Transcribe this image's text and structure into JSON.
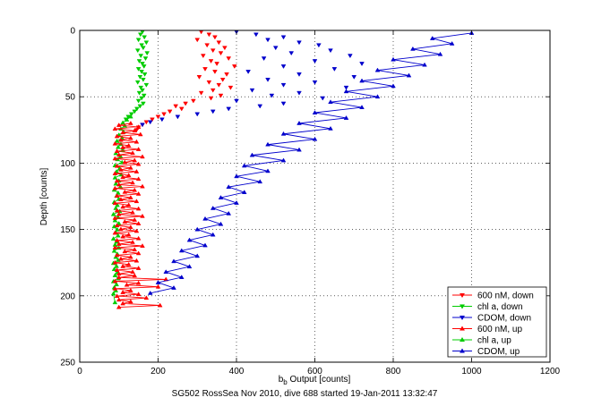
{
  "chart_data": {
    "type": "scatter",
    "xlabel_prefix": "b",
    "xlabel_sub": "b",
    "xlabel_suffix": " Output [counts]",
    "ylabel": "Depth [counts]",
    "caption": "SG502 RossSea Nov 2010, dive 688 started 19-Jan-2011 13:32:47",
    "xlim": [
      0,
      1200
    ],
    "ylim": [
      0,
      250
    ],
    "y_reversed": true,
    "grid": true,
    "legend_position": "bottom-right",
    "x_ticks": [
      "0",
      "200",
      "400",
      "600",
      "800",
      "1000",
      "1200"
    ],
    "y_ticks": [
      "0",
      "50",
      "100",
      "150",
      "200",
      "250"
    ],
    "series": [
      {
        "name": "600 nM, down",
        "color": "#ff0000",
        "marker": "down",
        "connected": false,
        "x": [
          310,
          330,
          345,
          300,
          355,
          325,
          370,
          340,
          360,
          315,
          380,
          335,
          350,
          395,
          320,
          345,
          375,
          305,
          365,
          330,
          355,
          385,
          340,
          310,
          360,
          335,
          290,
          270,
          245,
          260,
          230,
          215,
          200,
          185,
          170,
          160,
          150,
          145
        ],
        "y": [
          1,
          3,
          5,
          7,
          9,
          11,
          13,
          15,
          17,
          19,
          21,
          23,
          25,
          27,
          29,
          31,
          33,
          35,
          37,
          39,
          41,
          43,
          45,
          47,
          49,
          51,
          53,
          55,
          57,
          59,
          61,
          63,
          65,
          67,
          69,
          71,
          73,
          75
        ]
      },
      {
        "name": "chl a, down",
        "color": "#00cc00",
        "marker": "down",
        "connected": false,
        "x": [
          160,
          155,
          165,
          150,
          170,
          158,
          162,
          148,
          172,
          156,
          168,
          152,
          160,
          164,
          150,
          158,
          166,
          154,
          162,
          148,
          170,
          156,
          160,
          152,
          164,
          158,
          150,
          162,
          154,
          146,
          140,
          132,
          124,
          118
        ],
        "y": [
          1,
          3,
          5,
          7,
          9,
          11,
          13,
          15,
          17,
          19,
          21,
          23,
          25,
          27,
          29,
          31,
          33,
          35,
          37,
          39,
          41,
          43,
          45,
          47,
          49,
          51,
          53,
          55,
          57,
          59,
          61,
          63,
          65,
          67
        ]
      },
      {
        "name": "CDOM, down",
        "color": "#0000cc",
        "marker": "down",
        "connected": false,
        "x": [
          400,
          450,
          520,
          480,
          560,
          610,
          500,
          640,
          540,
          690,
          470,
          600,
          720,
          520,
          650,
          430,
          560,
          700,
          480,
          600,
          520,
          680,
          440,
          560,
          490,
          620,
          400,
          520,
          460,
          380,
          340,
          300,
          250,
          210,
          180,
          160
        ],
        "y": [
          1,
          3,
          5,
          7,
          9,
          11,
          13,
          15,
          17,
          19,
          21,
          23,
          25,
          27,
          29,
          31,
          33,
          35,
          37,
          39,
          41,
          43,
          45,
          47,
          49,
          51,
          53,
          55,
          57,
          59,
          61,
          63,
          65,
          67,
          69,
          71
        ]
      },
      {
        "name": "600 nM, up",
        "color": "#ff0000",
        "marker": "up",
        "connected": true,
        "x": [
          130,
          100,
          150,
          90,
          140,
          110,
          155,
          95,
          130,
          105,
          145,
          90,
          125,
          110,
          150,
          95,
          135,
          100,
          160,
          90,
          140,
          115,
          150,
          95,
          130,
          105,
          145,
          90,
          125,
          110,
          150,
          95,
          135,
          100,
          160,
          90,
          140,
          115,
          150,
          95,
          130,
          105,
          145,
          90,
          125,
          110,
          150,
          95,
          135,
          100,
          160,
          90,
          140,
          115,
          150,
          95,
          130,
          105,
          145,
          90,
          125,
          110,
          150,
          95,
          135,
          100,
          160,
          90,
          140,
          115,
          150,
          95,
          130,
          105,
          145,
          90,
          125,
          110,
          150,
          95,
          135,
          100,
          140,
          100,
          220,
          90,
          150,
          120,
          200,
          90,
          130,
          110,
          150,
          95,
          170,
          100,
          130,
          110,
          205,
          100
        ],
        "y": [
          70,
          71.4,
          72.8,
          74.2,
          75.6,
          77,
          78.4,
          79.8,
          81.2,
          82.6,
          84,
          85.4,
          86.8,
          88.2,
          89.6,
          91,
          92.4,
          93.8,
          95.2,
          96.6,
          98,
          99.4,
          100.8,
          102.2,
          103.6,
          105,
          106.4,
          107.8,
          109.2,
          110.6,
          112,
          113.4,
          114.8,
          116.2,
          117.6,
          119,
          120.4,
          121.8,
          123.2,
          124.6,
          126,
          127.4,
          128.8,
          130.2,
          131.6,
          133,
          134.4,
          135.8,
          137.2,
          138.6,
          140,
          141.4,
          142.8,
          144.2,
          145.6,
          147,
          148.4,
          149.8,
          151.2,
          152.6,
          154,
          155.4,
          156.8,
          158.2,
          159.6,
          161,
          162.4,
          163.8,
          165.2,
          166.6,
          168,
          169.4,
          170.8,
          172.2,
          173.6,
          175,
          176.4,
          177.8,
          179.2,
          180.6,
          182,
          183.4,
          184.8,
          186.2,
          187.6,
          189,
          190.4,
          191.8,
          193.2,
          194.6,
          196,
          197.4,
          198.8,
          200.2,
          201.6,
          203,
          204.4,
          205.8,
          207.2,
          208.6
        ]
      },
      {
        "name": "chl a, up",
        "color": "#00cc00",
        "marker": "up",
        "connected": true,
        "x": [
          130,
          120,
          110,
          115,
          105,
          112,
          100,
          108,
          95,
          105,
          98,
          110,
          92,
          104,
          96,
          108,
          90,
          102,
          94,
          106,
          90,
          100,
          92,
          104,
          88,
          98,
          94,
          100,
          88,
          96,
          92,
          102,
          86,
          98,
          90,
          100,
          88,
          96,
          92,
          98,
          86,
          94,
          90,
          100,
          88,
          96,
          92,
          98,
          86,
          94,
          88,
          96,
          90,
          98,
          86,
          94,
          88,
          92,
          86,
          90
        ],
        "y": [
          65,
          67.3,
          69.6,
          71.9,
          74.2,
          76.5,
          78.8,
          81.1,
          83.4,
          85.7,
          88,
          90.3,
          92.6,
          94.9,
          97.2,
          99.5,
          101.8,
          104.1,
          106.4,
          108.7,
          111,
          113.3,
          115.6,
          117.9,
          120.2,
          122.5,
          124.8,
          127.1,
          129.4,
          131.7,
          134,
          136.3,
          138.6,
          140.9,
          143.2,
          145.5,
          147.8,
          150.1,
          152.4,
          154.7,
          157,
          159.3,
          161.6,
          163.9,
          166.2,
          168.5,
          170.8,
          173.1,
          175.4,
          177.7,
          180,
          182.3,
          184.6,
          186.9,
          189.2,
          191.5,
          193.8,
          196.1,
          198.4,
          205
        ]
      },
      {
        "name": "CDOM, up",
        "color": "#0000cc",
        "marker": "up",
        "connected": true,
        "x": [
          1000,
          900,
          950,
          850,
          920,
          800,
          880,
          760,
          840,
          720,
          800,
          680,
          760,
          640,
          720,
          600,
          680,
          560,
          640,
          520,
          600,
          480,
          560,
          440,
          520,
          420,
          480,
          400,
          460,
          380,
          420,
          360,
          400,
          340,
          380,
          320,
          360,
          300,
          340,
          280,
          320,
          260,
          300,
          240,
          280,
          220,
          260,
          200,
          240,
          180
        ],
        "y": [
          2,
          6,
          10,
          14,
          18,
          22,
          26,
          30,
          34,
          38,
          42,
          46,
          50,
          54,
          58,
          62,
          66,
          70,
          74,
          78,
          82,
          86,
          90,
          94,
          98,
          102,
          106,
          110,
          114,
          118,
          122,
          126,
          130,
          134,
          138,
          142,
          146,
          150,
          154,
          158,
          162,
          166,
          170,
          174,
          178,
          182,
          186,
          190,
          194,
          198
        ]
      }
    ]
  }
}
